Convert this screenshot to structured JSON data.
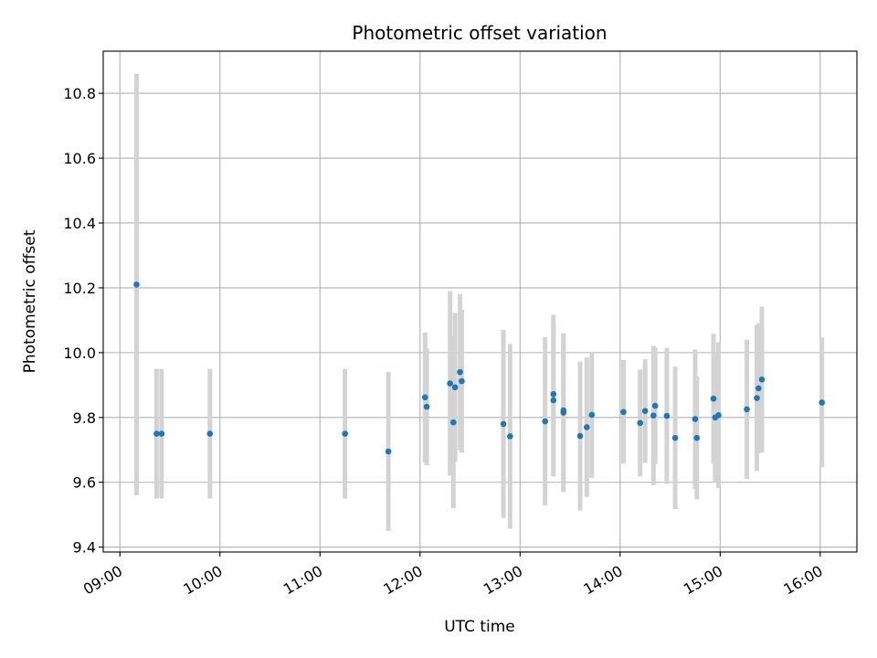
{
  "chart_data": {
    "type": "scatter",
    "title": "Photometric offset variation",
    "xlabel": "UTC time",
    "ylabel": "Photometric offset",
    "x_ticks": [
      "09:00",
      "10:00",
      "11:00",
      "12:00",
      "13:00",
      "14:00",
      "15:00",
      "16:00"
    ],
    "y_ticks": [
      9.4,
      9.6,
      9.8,
      10.0,
      10.2,
      10.4,
      10.6,
      10.8
    ],
    "xlim": [
      "08:50",
      "16:22"
    ],
    "ylim": [
      9.385,
      10.93
    ],
    "grid": true,
    "point_color": "#1f77b4",
    "errorbar_color": "#d3d3d3",
    "points": [
      {
        "x": "09:10",
        "y": 10.21,
        "err": 0.65
      },
      {
        "x": "09:22",
        "y": 9.75,
        "err": 0.2
      },
      {
        "x": "09:25",
        "y": 9.75,
        "err": 0.2
      },
      {
        "x": "09:54",
        "y": 9.75,
        "err": 0.2
      },
      {
        "x": "11:15",
        "y": 9.75,
        "err": 0.2
      },
      {
        "x": "11:41",
        "y": 9.695,
        "err": 0.245
      },
      {
        "x": "12:03",
        "y": 9.862,
        "err": 0.2
      },
      {
        "x": "12:04",
        "y": 9.833,
        "err": 0.18
      },
      {
        "x": "12:18",
        "y": 9.905,
        "err": 0.285
      },
      {
        "x": "12:20",
        "y": 9.785,
        "err": 0.265
      },
      {
        "x": "12:21",
        "y": 9.893,
        "err": 0.23
      },
      {
        "x": "12:24",
        "y": 9.94,
        "err": 0.24
      },
      {
        "x": "12:25",
        "y": 9.912,
        "err": 0.22
      },
      {
        "x": "12:50",
        "y": 9.78,
        "err": 0.29
      },
      {
        "x": "12:54",
        "y": 9.742,
        "err": 0.285
      },
      {
        "x": "13:15",
        "y": 9.788,
        "err": 0.26
      },
      {
        "x": "13:20",
        "y": 9.872,
        "err": 0.245
      },
      {
        "x": "13:20",
        "y": 9.853,
        "err": 0.235
      },
      {
        "x": "13:26",
        "y": 9.815,
        "err": 0.245
      },
      {
        "x": "13:26",
        "y": 9.822,
        "err": 0.225
      },
      {
        "x": "13:36",
        "y": 9.743,
        "err": 0.23
      },
      {
        "x": "13:40",
        "y": 9.77,
        "err": 0.215
      },
      {
        "x": "13:43",
        "y": 9.808,
        "err": 0.195
      },
      {
        "x": "14:02",
        "y": 9.817,
        "err": 0.16
      },
      {
        "x": "14:12",
        "y": 9.783,
        "err": 0.165
      },
      {
        "x": "14:15",
        "y": 9.82,
        "err": 0.16
      },
      {
        "x": "14:20",
        "y": 9.806,
        "err": 0.215
      },
      {
        "x": "14:21",
        "y": 9.836,
        "err": 0.18
      },
      {
        "x": "14:28",
        "y": 9.805,
        "err": 0.21
      },
      {
        "x": "14:33",
        "y": 9.737,
        "err": 0.22
      },
      {
        "x": "14:45",
        "y": 9.795,
        "err": 0.215
      },
      {
        "x": "14:46",
        "y": 9.737,
        "err": 0.19
      },
      {
        "x": "14:56",
        "y": 9.858,
        "err": 0.2
      },
      {
        "x": "14:57",
        "y": 9.8,
        "err": 0.2
      },
      {
        "x": "14:59",
        "y": 9.807,
        "err": 0.225
      },
      {
        "x": "15:16",
        "y": 9.825,
        "err": 0.215
      },
      {
        "x": "15:22",
        "y": 9.86,
        "err": 0.225
      },
      {
        "x": "15:23",
        "y": 9.89,
        "err": 0.2
      },
      {
        "x": "15:25",
        "y": 9.917,
        "err": 0.225
      },
      {
        "x": "16:01",
        "y": 9.846,
        "err": 0.2
      }
    ]
  }
}
